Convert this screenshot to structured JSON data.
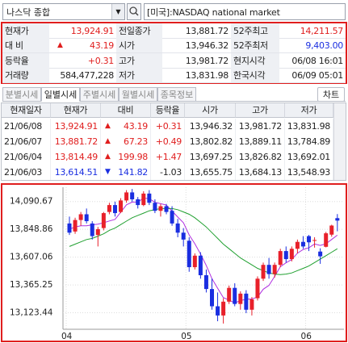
{
  "search": {
    "market": "나스닥 종합",
    "code": "[미국]:NASDAQ national market"
  },
  "quote": {
    "rows": [
      {
        "cells": [
          "현재가",
          "13,924.91",
          "전일종가",
          "13,881.72",
          "52주최고",
          "14,211.57"
        ]
      },
      {
        "cells": [
          "대 비",
          "43.19",
          "시가",
          "13,946.32",
          "52주최저",
          "9,403.00"
        ],
        "arrow": "▲"
      },
      {
        "cells": [
          "등락율",
          "+0.31",
          "고가",
          "13,981.72",
          "현지시각",
          "06/08 16:01"
        ]
      },
      {
        "cells": [
          "거래량",
          "584,477,228",
          "저가",
          "13,831.98",
          "한국시각",
          "06/09 05:01"
        ]
      }
    ]
  },
  "tabs": {
    "items": [
      "분별시세",
      "일별시세",
      "주별시세",
      "월별시세",
      "종목정보"
    ],
    "active": 1,
    "button": "차트"
  },
  "daily": {
    "headers": [
      "현재일자",
      "현재가",
      "대비",
      "등락율",
      "시가",
      "고가",
      "저가"
    ],
    "rows": [
      {
        "direction": "up",
        "cells": [
          "21/06/08",
          "13,924.91",
          "43.19",
          "+0.31",
          "13,946.32",
          "13,981.72",
          "13,831.98"
        ],
        "arrow": "▲"
      },
      {
        "direction": "up",
        "cells": [
          "21/06/07",
          "13,881.72",
          "67.23",
          "+0.49",
          "13,802.82",
          "13,889.11",
          "13,784.89"
        ],
        "arrow": "▲"
      },
      {
        "direction": "up",
        "cells": [
          "21/06/04",
          "13,814.49",
          "199.98",
          "+1.47",
          "13,697.25",
          "13,826.82",
          "13,692.01"
        ],
        "arrow": "▲"
      },
      {
        "direction": "down",
        "cells": [
          "21/06/03",
          "13,614.51",
          "141.82",
          "-1.03",
          "13,655.75",
          "13,684.13",
          "13,548.93"
        ],
        "arrow": "▼"
      }
    ]
  },
  "chart_data": {
    "type": "candlestick",
    "categories": [
      "04",
      null,
      null,
      null,
      null,
      null,
      null,
      null,
      null,
      null,
      null,
      null,
      null,
      null,
      null,
      null,
      null,
      null,
      null,
      null,
      null,
      "05",
      null,
      null,
      null,
      null,
      null,
      null,
      null,
      null,
      null,
      null,
      null,
      null,
      null,
      null,
      null,
      null,
      null,
      null,
      null,
      null,
      "06",
      null,
      null,
      null,
      null,
      null
    ],
    "open": [
      13900,
      13830,
      13930,
      13980,
      13900,
      13800,
      13860,
      14000,
      14060,
      14000,
      14100,
      14170,
      14110,
      14060,
      14160,
      14080,
      14010,
      14050,
      14010,
      13900,
      13820,
      13750,
      13520,
      13620,
      13450,
      13330,
      13180,
      13100,
      13220,
      13340,
      13200,
      13290,
      13150,
      13250,
      13420,
      13540,
      13460,
      13540,
      13660,
      13590,
      13680,
      13740,
      13790,
      13750,
      13655.75,
      13697.25,
      13802.82,
      13946.32
    ],
    "high": [
      13960,
      13950,
      14000,
      14030,
      13920,
      13870,
      14000,
      14080,
      14090,
      14120,
      14190,
      14200,
      14130,
      14180,
      14190,
      14110,
      14070,
      14070,
      14050,
      13940,
      13860,
      13780,
      13640,
      13650,
      13500,
      13420,
      13300,
      13250,
      13360,
      13380,
      13310,
      13320,
      13260,
      13440,
      13560,
      13600,
      13560,
      13680,
      13700,
      13700,
      13760,
      13790,
      13800,
      13780,
      13684.13,
      13826.82,
      13889.11,
      13981.72
    ],
    "low": [
      13800,
      13810,
      13880,
      13900,
      13760,
      13700,
      13840,
      13980,
      13960,
      13990,
      14080,
      14090,
      14030,
      14050,
      14060,
      13990,
      13960,
      13980,
      13880,
      13780,
      13700,
      13480,
      13500,
      13420,
      13300,
      13150,
      13050,
      13030,
      13200,
      13180,
      13150,
      13120,
      13100,
      13230,
      13400,
      13420,
      13430,
      13520,
      13560,
      13570,
      13640,
      13680,
      13660,
      13690,
      13548.93,
      13692.01,
      13784.89,
      13831.98
    ],
    "close": [
      13820,
      13930,
      13980,
      13920,
      13790,
      13850,
      13990,
      14060,
      13990,
      14100,
      14170,
      14110,
      14060,
      14160,
      14080,
      14010,
      14050,
      14000,
      13900,
      13820,
      13760,
      13520,
      13620,
      13450,
      13330,
      13180,
      13100,
      13220,
      13340,
      13200,
      13290,
      13150,
      13240,
      13420,
      13540,
      13460,
      13540,
      13660,
      13590,
      13680,
      13740,
      13700,
      13736,
      13756,
      13614.51,
      13814.49,
      13881.72,
      13924.91
    ],
    "up_color": "#e8202a",
    "down_color": "#1a2ee0",
    "lines": [
      {
        "color": "#b030e0",
        "values": [
          13850,
          13870,
          13880,
          13880,
          13888,
          13894,
          13906,
          13922,
          13936,
          13998,
          14062,
          14086,
          14086,
          14120,
          14116,
          14084,
          14072,
          14060,
          14008,
          13956,
          13906,
          13800,
          13724,
          13634,
          13536,
          13420,
          13336,
          13256,
          13234,
          13208,
          13230,
          13240,
          13244,
          13260,
          13328,
          13362,
          13440,
          13524,
          13558,
          13586,
          13642,
          13674,
          13689,
          13722,
          13709,
          13724,
          13761,
          13798
        ]
      },
      {
        "color": "#20a030",
        "values": [
          13700,
          13720,
          13740,
          13760,
          13770,
          13790,
          13810,
          13840,
          13860,
          13890,
          13920,
          13950,
          13970,
          13990,
          14010,
          14020,
          14030,
          14030,
          14030,
          14020,
          14000,
          13980,
          13950,
          13910,
          13870,
          13820,
          13770,
          13720,
          13680,
          13640,
          13600,
          13570,
          13540,
          13510,
          13490,
          13470,
          13460,
          13455,
          13460,
          13470,
          13490,
          13510,
          13530,
          13560,
          13590,
          13620,
          13650,
          13680
        ]
      }
    ],
    "ylim": [
      12980,
      14215
    ],
    "yticks": [
      {
        "value": 14090.67,
        "label": "14,090.67"
      },
      {
        "value": 13848.86,
        "label": "13,848.86"
      },
      {
        "value": 13607.06,
        "label": "13,607.06"
      },
      {
        "value": 13365.25,
        "label": "13,365.25"
      },
      {
        "value": 13123.44,
        "label": "13,123.44"
      }
    ],
    "grid": true
  }
}
